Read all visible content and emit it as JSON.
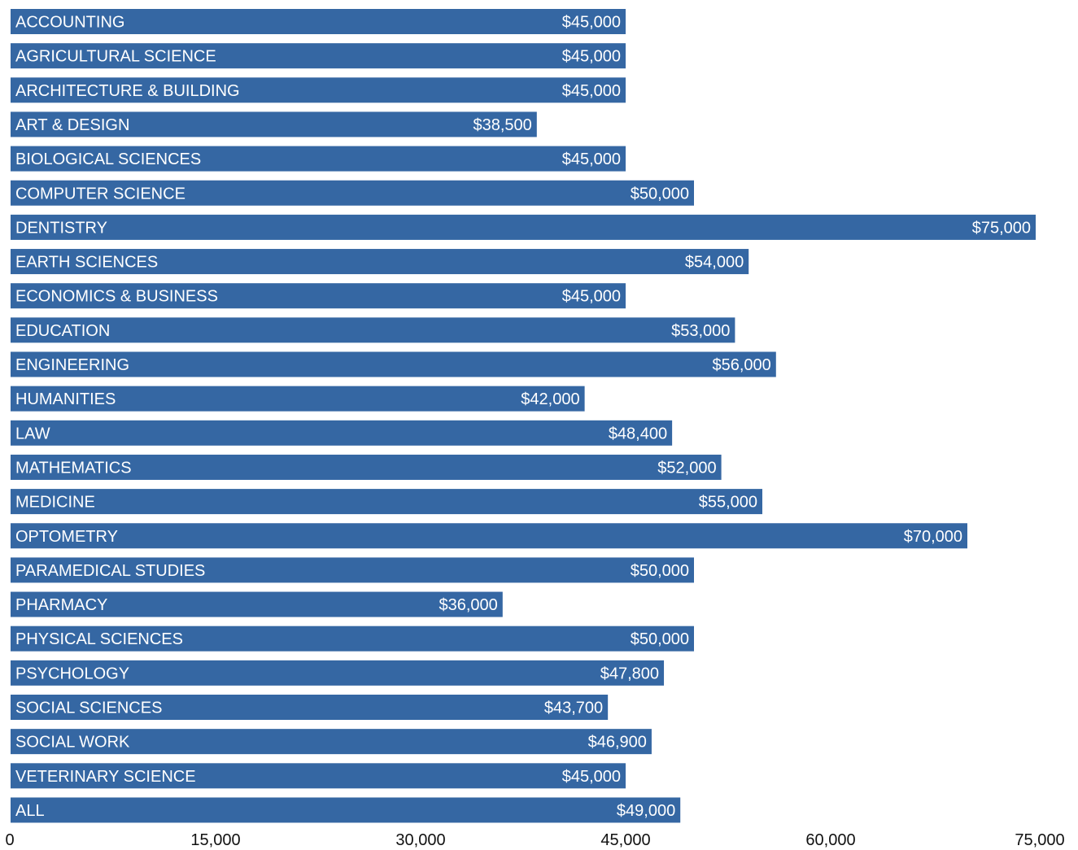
{
  "colors": {
    "bar": "#3567a3",
    "background": "#ffffff",
    "bar_text": "#ffffff",
    "tick_text": "#111111"
  },
  "chart_data": {
    "type": "bar",
    "orientation": "horizontal",
    "title": "",
    "xlabel": "",
    "ylabel": "",
    "xlim": [
      0,
      75000
    ],
    "grid": false,
    "legend": "none",
    "x_ticks": [
      "0",
      "15,000",
      "30,000",
      "45,000",
      "60,000",
      "75,000"
    ],
    "x_tick_values": [
      0,
      15000,
      30000,
      45000,
      60000,
      75000
    ],
    "categories": [
      "ACCOUNTING",
      "AGRICULTURAL SCIENCE",
      "ARCHITECTURE & BUILDING",
      "ART & DESIGN",
      "BIOLOGICAL SCIENCES",
      "COMPUTER SCIENCE",
      "DENTISTRY",
      "EARTH SCIENCES",
      "ECONOMICS & BUSINESS",
      "EDUCATION",
      "ENGINEERING",
      "HUMANITIES",
      "LAW",
      "MATHEMATICS",
      "MEDICINE",
      "OPTOMETRY",
      "PARAMEDICAL STUDIES",
      "PHARMACY",
      "PHYSICAL SCIENCES",
      "PSYCHOLOGY",
      "SOCIAL SCIENCES",
      "SOCIAL WORK",
      "VETERINARY SCIENCE",
      "ALL"
    ],
    "values": [
      45000,
      45000,
      45000,
      38500,
      45000,
      50000,
      75000,
      54000,
      45000,
      53000,
      56000,
      42000,
      48400,
      52000,
      55000,
      70000,
      50000,
      36000,
      50000,
      47800,
      43700,
      46900,
      45000,
      49000
    ],
    "value_labels": [
      "$45,000",
      "$45,000",
      "$45,000",
      "$38,500",
      "$45,000",
      "$50,000",
      "$75,000",
      "$54,000",
      "$45,000",
      "$53,000",
      "$56,000",
      "$42,000",
      "$48,400",
      "$52,000",
      "$55,000",
      "$70,000",
      "$50,000",
      "$36,000",
      "$50,000",
      "$47,800",
      "$43,700",
      "$46,900",
      "$45,000",
      "$49,000"
    ]
  }
}
